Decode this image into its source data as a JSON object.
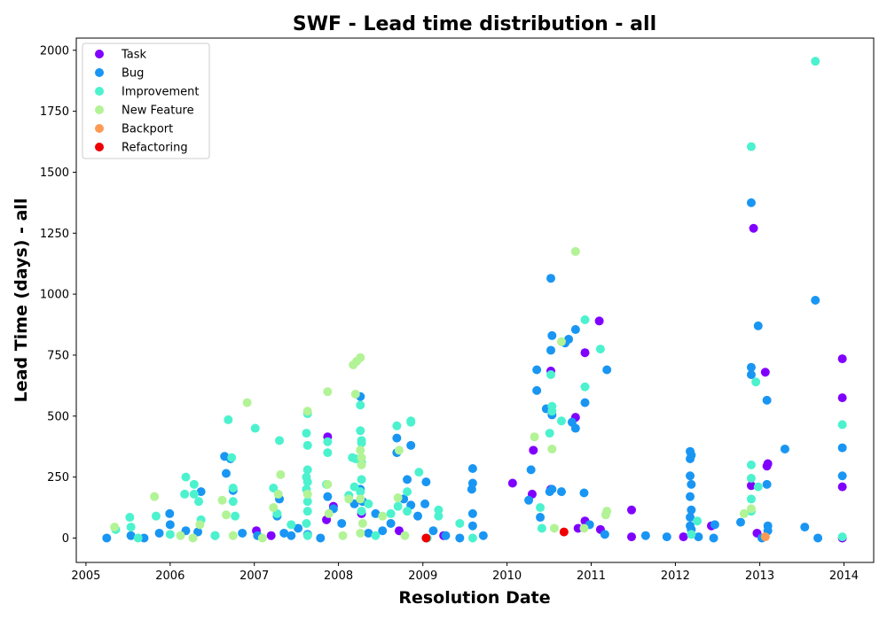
{
  "chart_data": {
    "type": "scatter",
    "title": "SWF - Lead time distribution - all",
    "xlabel": "Resolution Date",
    "ylabel": "Lead Time (days) - all",
    "xlim": [
      "2004-11-20",
      "2014-05-10"
    ],
    "ylim": [
      -100,
      2050
    ],
    "x_ticks": [
      "2005-01-01",
      "2006-01-01",
      "2007-01-01",
      "2008-01-01",
      "2009-01-01",
      "2010-01-01",
      "2011-01-01",
      "2012-01-01",
      "2013-01-01",
      "2014-01-01"
    ],
    "x_tick_labels": [
      "2005",
      "2006",
      "2007",
      "2008",
      "2009",
      "2010",
      "2011",
      "2012",
      "2013",
      "2014"
    ],
    "y_ticks": [
      0,
      250,
      500,
      750,
      1000,
      1250,
      1500,
      1750,
      2000
    ],
    "y_tick_labels": [
      "0",
      "250",
      "500",
      "750",
      "1000",
      "1250",
      "1500",
      "1750",
      "2000"
    ],
    "grid": false,
    "legend_position": "top-left",
    "series": [
      {
        "name": "Task",
        "color": "#8000ff",
        "points": [
          [
            "2007-01-10",
            30
          ],
          [
            "2007-03-15",
            10
          ],
          [
            "2007-11-15",
            415
          ],
          [
            "2007-11-10",
            75
          ],
          [
            "2007-12-10",
            130
          ],
          [
            "2008-04-10",
            100
          ],
          [
            "2008-09-20",
            30
          ],
          [
            "2009-04-01",
            10
          ],
          [
            "2010-01-25",
            225
          ],
          [
            "2010-04-25",
            360
          ],
          [
            "2010-04-20",
            180
          ],
          [
            "2010-07-10",
            685
          ],
          [
            "2010-07-10",
            200
          ],
          [
            "2010-10-25",
            495
          ],
          [
            "2010-11-05",
            40
          ],
          [
            "2010-12-05",
            760
          ],
          [
            "2010-12-05",
            70
          ],
          [
            "2011-02-05",
            890
          ],
          [
            "2011-02-10",
            35
          ],
          [
            "2011-06-25",
            115
          ],
          [
            "2011-06-25",
            5
          ],
          [
            "2012-02-05",
            5
          ],
          [
            "2012-06-05",
            50
          ],
          [
            "2012-12-05",
            1270
          ],
          [
            "2012-11-25",
            215
          ],
          [
            "2013-01-25",
            680
          ],
          [
            "2013-02-05",
            305
          ],
          [
            "2013-02-01",
            295
          ],
          [
            "2012-12-20",
            20
          ],
          [
            "2013-12-25",
            735
          ],
          [
            "2013-12-25",
            575
          ],
          [
            "2013-12-25",
            210
          ],
          [
            "2013-12-25",
            0
          ]
        ]
      },
      {
        "name": "Bug",
        "color": "#1996f3",
        "points": [
          [
            "2005-04-01",
            0
          ],
          [
            "2005-07-15",
            10
          ],
          [
            "2005-09-10",
            0
          ],
          [
            "2005-11-15",
            20
          ],
          [
            "2005-12-30",
            100
          ],
          [
            "2006-01-01",
            55
          ],
          [
            "2006-03-10",
            30
          ],
          [
            "2006-05-01",
            25
          ],
          [
            "2006-05-15",
            190
          ],
          [
            "2006-07-15",
            10
          ],
          [
            "2006-08-25",
            335
          ],
          [
            "2006-09-01",
            265
          ],
          [
            "2006-09-20",
            325
          ],
          [
            "2006-10-01",
            195
          ],
          [
            "2006-11-10",
            20
          ],
          [
            "2007-01-15",
            10
          ],
          [
            "2007-04-10",
            90
          ],
          [
            "2007-04-20",
            160
          ],
          [
            "2007-05-10",
            20
          ],
          [
            "2007-06-10",
            10
          ],
          [
            "2007-07-10",
            40
          ],
          [
            "2007-08-20",
            15
          ],
          [
            "2007-10-15",
            0
          ],
          [
            "2007-11-15",
            170
          ],
          [
            "2007-12-10",
            120
          ],
          [
            "2008-01-15",
            60
          ],
          [
            "2008-03-10",
            140
          ],
          [
            "2008-04-05",
            200
          ],
          [
            "2008-04-05",
            580
          ],
          [
            "2008-04-15",
            150
          ],
          [
            "2008-05-10",
            20
          ],
          [
            "2008-06-10",
            100
          ],
          [
            "2008-07-10",
            30
          ],
          [
            "2008-08-15",
            60
          ],
          [
            "2008-09-10",
            410
          ],
          [
            "2008-09-10",
            350
          ],
          [
            "2008-10-10",
            160
          ],
          [
            "2008-10-25",
            240
          ],
          [
            "2008-11-10",
            380
          ],
          [
            "2008-11-10",
            135
          ],
          [
            "2008-12-10",
            90
          ],
          [
            "2009-01-15",
            230
          ],
          [
            "2009-01-10",
            140
          ],
          [
            "2009-02-15",
            30
          ],
          [
            "2009-04-10",
            10
          ],
          [
            "2009-06-10",
            0
          ],
          [
            "2009-08-05",
            285
          ],
          [
            "2009-08-05",
            225
          ],
          [
            "2009-08-01",
            200
          ],
          [
            "2009-08-05",
            100
          ],
          [
            "2009-08-05",
            50
          ],
          [
            "2009-09-20",
            10
          ],
          [
            "2010-04-05",
            155
          ],
          [
            "2010-04-15",
            280
          ],
          [
            "2010-05-10",
            605
          ],
          [
            "2010-05-10",
            690
          ],
          [
            "2010-05-25",
            85
          ],
          [
            "2010-06-20",
            530
          ],
          [
            "2010-07-10",
            1065
          ],
          [
            "2010-07-15",
            830
          ],
          [
            "2010-07-10",
            770
          ],
          [
            "2010-07-15",
            505
          ],
          [
            "2010-07-15",
            200
          ],
          [
            "2010-07-05",
            190
          ],
          [
            "2010-08-25",
            190
          ],
          [
            "2010-09-10",
            800
          ],
          [
            "2010-09-25",
            815
          ],
          [
            "2010-10-10",
            475
          ],
          [
            "2010-10-25",
            450
          ],
          [
            "2010-10-25",
            855
          ],
          [
            "2010-12-05",
            555
          ],
          [
            "2010-12-01",
            185
          ],
          [
            "2010-12-25",
            55
          ],
          [
            "2011-03-10",
            690
          ],
          [
            "2011-03-01",
            15
          ],
          [
            "2011-08-25",
            10
          ],
          [
            "2011-11-25",
            5
          ],
          [
            "2012-03-05",
            355
          ],
          [
            "2012-03-10",
            340
          ],
          [
            "2012-03-05",
            325
          ],
          [
            "2012-03-05",
            255
          ],
          [
            "2012-03-10",
            220
          ],
          [
            "2012-03-05",
            170
          ],
          [
            "2012-03-10",
            115
          ],
          [
            "2012-03-05",
            85
          ],
          [
            "2012-03-05",
            50
          ],
          [
            "2012-03-10",
            35
          ],
          [
            "2012-04-10",
            5
          ],
          [
            "2012-06-20",
            55
          ],
          [
            "2012-06-15",
            0
          ],
          [
            "2012-10-10",
            65
          ],
          [
            "2012-11-25",
            1375
          ],
          [
            "2012-11-25",
            700
          ],
          [
            "2012-11-25",
            670
          ],
          [
            "2012-12-25",
            870
          ],
          [
            "2013-02-01",
            565
          ],
          [
            "2013-02-01",
            220
          ],
          [
            "2013-02-05",
            50
          ],
          [
            "2013-02-05",
            30
          ],
          [
            "2013-01-10",
            0
          ],
          [
            "2013-04-20",
            365
          ],
          [
            "2013-07-15",
            45
          ],
          [
            "2013-08-30",
            975
          ],
          [
            "2013-09-10",
            0
          ],
          [
            "2013-12-25",
            370
          ],
          [
            "2013-12-25",
            255
          ]
        ]
      },
      {
        "name": "Improvement",
        "color": "#4cf2ce",
        "points": [
          [
            "2005-05-10",
            35
          ],
          [
            "2005-07-10",
            85
          ],
          [
            "2005-07-15",
            45
          ],
          [
            "2005-08-15",
            0
          ],
          [
            "2005-11-01",
            90
          ],
          [
            "2006-01-01",
            15
          ],
          [
            "2006-03-05",
            180
          ],
          [
            "2006-03-10",
            250
          ],
          [
            "2006-04-15",
            220
          ],
          [
            "2006-04-15",
            180
          ],
          [
            "2006-05-05",
            150
          ],
          [
            "2006-05-15",
            75
          ],
          [
            "2006-07-15",
            10
          ],
          [
            "2006-09-10",
            485
          ],
          [
            "2006-09-25",
            330
          ],
          [
            "2006-10-01",
            205
          ],
          [
            "2006-10-01",
            150
          ],
          [
            "2006-10-10",
            90
          ],
          [
            "2007-01-05",
            450
          ],
          [
            "2007-03-25",
            205
          ],
          [
            "2007-04-10",
            100
          ],
          [
            "2007-04-20",
            400
          ],
          [
            "2007-06-10",
            55
          ],
          [
            "2007-08-20",
            510
          ],
          [
            "2007-08-15",
            430
          ],
          [
            "2007-08-20",
            380
          ],
          [
            "2007-08-20",
            280
          ],
          [
            "2007-08-15",
            250
          ],
          [
            "2007-08-20",
            230
          ],
          [
            "2007-08-15",
            200
          ],
          [
            "2007-08-20",
            150
          ],
          [
            "2007-08-20",
            110
          ],
          [
            "2007-08-15",
            60
          ],
          [
            "2007-08-20",
            10
          ],
          [
            "2007-11-15",
            350
          ],
          [
            "2007-11-15",
            395
          ],
          [
            "2007-11-10",
            220
          ],
          [
            "2008-02-15",
            175
          ],
          [
            "2008-03-01",
            330
          ],
          [
            "2008-03-15",
            325
          ],
          [
            "2008-03-10",
            210
          ],
          [
            "2008-04-05",
            545
          ],
          [
            "2008-04-05",
            440
          ],
          [
            "2008-04-10",
            400
          ],
          [
            "2008-04-10",
            390
          ],
          [
            "2008-04-10",
            310
          ],
          [
            "2008-04-10",
            240
          ],
          [
            "2008-04-05",
            190
          ],
          [
            "2008-04-10",
            110
          ],
          [
            "2008-05-10",
            140
          ],
          [
            "2008-06-10",
            10
          ],
          [
            "2008-08-15",
            100
          ],
          [
            "2008-09-10",
            460
          ],
          [
            "2008-09-15",
            130
          ],
          [
            "2008-10-25",
            190
          ],
          [
            "2008-10-25",
            110
          ],
          [
            "2008-11-10",
            480
          ],
          [
            "2008-11-10",
            475
          ],
          [
            "2008-12-15",
            270
          ],
          [
            "2009-01-20",
            0
          ],
          [
            "2009-03-10",
            115
          ],
          [
            "2009-03-10",
            90
          ],
          [
            "2009-06-10",
            60
          ],
          [
            "2009-08-05",
            0
          ],
          [
            "2010-05-25",
            125
          ],
          [
            "2010-06-01",
            40
          ],
          [
            "2010-07-10",
            670
          ],
          [
            "2010-07-05",
            430
          ],
          [
            "2010-07-15",
            540
          ],
          [
            "2010-07-15",
            520
          ],
          [
            "2010-08-25",
            480
          ],
          [
            "2010-12-05",
            895
          ],
          [
            "2010-12-05",
            620
          ],
          [
            "2011-02-10",
            775
          ],
          [
            "2012-03-10",
            15
          ],
          [
            "2012-04-05",
            70
          ],
          [
            "2012-11-25",
            1605
          ],
          [
            "2012-11-25",
            300
          ],
          [
            "2012-11-25",
            245
          ],
          [
            "2012-12-15",
            640
          ],
          [
            "2012-12-25",
            210
          ],
          [
            "2012-11-25",
            160
          ],
          [
            "2012-11-25",
            110
          ],
          [
            "2013-08-30",
            1955
          ],
          [
            "2013-12-25",
            465
          ],
          [
            "2013-12-25",
            5
          ]
        ]
      },
      {
        "name": "New Feature",
        "color": "#b2f396",
        "points": [
          [
            "2005-05-05",
            45
          ],
          [
            "2005-10-25",
            170
          ],
          [
            "2006-02-15",
            10
          ],
          [
            "2006-04-10",
            0
          ],
          [
            "2006-05-10",
            55
          ],
          [
            "2006-08-15",
            155
          ],
          [
            "2006-09-01",
            95
          ],
          [
            "2006-10-01",
            10
          ],
          [
            "2006-12-01",
            555
          ],
          [
            "2007-02-05",
            0
          ],
          [
            "2007-03-25",
            125
          ],
          [
            "2007-04-25",
            260
          ],
          [
            "2007-04-15",
            180
          ],
          [
            "2007-08-20",
            520
          ],
          [
            "2007-08-20",
            180
          ],
          [
            "2007-11-15",
            600
          ],
          [
            "2007-11-15",
            220
          ],
          [
            "2007-11-20",
            100
          ],
          [
            "2008-01-20",
            10
          ],
          [
            "2008-02-15",
            160
          ],
          [
            "2008-03-05",
            710
          ],
          [
            "2008-03-20",
            725
          ],
          [
            "2008-04-05",
            740
          ],
          [
            "2008-03-15",
            590
          ],
          [
            "2008-04-05",
            360
          ],
          [
            "2008-04-10",
            330
          ],
          [
            "2008-04-10",
            300
          ],
          [
            "2008-04-05",
            160
          ],
          [
            "2008-04-15",
            60
          ],
          [
            "2008-04-05",
            20
          ],
          [
            "2008-07-10",
            90
          ],
          [
            "2008-09-20",
            360
          ],
          [
            "2008-09-15",
            165
          ],
          [
            "2008-10-15",
            10
          ],
          [
            "2010-04-30",
            415
          ],
          [
            "2010-07-15",
            365
          ],
          [
            "2010-08-25",
            805
          ],
          [
            "2010-10-25",
            1175
          ],
          [
            "2010-07-25",
            40
          ],
          [
            "2010-12-01",
            40
          ],
          [
            "2011-03-10",
            110
          ],
          [
            "2011-03-05",
            95
          ],
          [
            "2012-10-25",
            100
          ],
          [
            "2012-11-25",
            120
          ]
        ]
      },
      {
        "name": "Backport",
        "color": "#ff9a55",
        "points": [
          [
            "2013-01-25",
            5
          ]
        ]
      },
      {
        "name": "Refactoring",
        "color": "#ee0000",
        "points": [
          [
            "2009-01-15",
            0
          ],
          [
            "2010-09-05",
            25
          ]
        ]
      }
    ]
  }
}
